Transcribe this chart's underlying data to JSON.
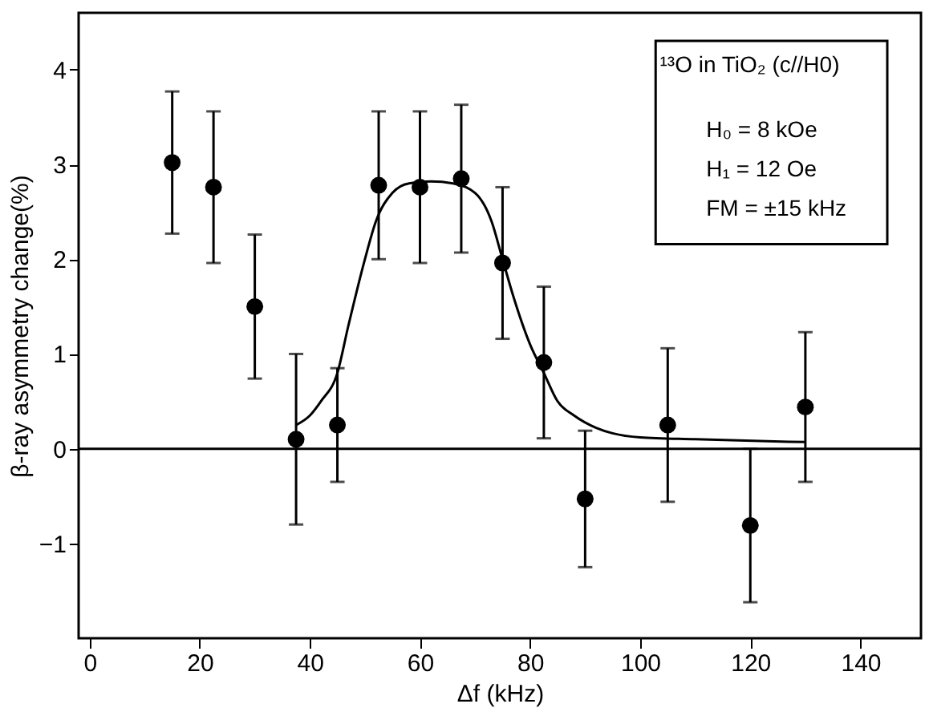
{
  "chart_data": {
    "type": "scatter",
    "xlabel": "Δf (kHz)",
    "ylabel": "β-ray asymmetry change(%)",
    "xlim": [
      -2,
      151
    ],
    "ylim": [
      -2,
      4.6
    ],
    "xticks": [
      0,
      20,
      40,
      60,
      80,
      100,
      120,
      140
    ],
    "yticks": [
      -1,
      0,
      1,
      2,
      3,
      4
    ],
    "grid": false,
    "series": [
      {
        "color": "#000000",
        "marker": "circle",
        "x": [
          15,
          22.5,
          30,
          37.5,
          45,
          52.5,
          60,
          67.5,
          75,
          82.5,
          90,
          105,
          120,
          130
        ],
        "values": [
          3.02,
          2.76,
          1.5,
          0.1,
          0.25,
          2.78,
          2.76,
          2.85,
          1.96,
          0.91,
          -0.53,
          0.25,
          -0.81,
          0.44
        ],
        "errors": [
          0.75,
          0.8,
          0.76,
          0.9,
          0.6,
          0.78,
          0.8,
          0.78,
          0.8,
          0.8,
          0.72,
          0.81,
          0.81,
          0.79
        ]
      },
      {
        "type": "line",
        "color": "#000000",
        "marker": "none",
        "line_style": "solid",
        "x": [
          37.5,
          40,
          42,
          45,
          47,
          50,
          52,
          55,
          58,
          62,
          66,
          70,
          73,
          75,
          77,
          80,
          82.5,
          85,
          88,
          92,
          100,
          110,
          130
        ],
        "values": [
          0.25,
          0.35,
          0.5,
          0.8,
          1.3,
          2.0,
          2.4,
          2.7,
          2.8,
          2.82,
          2.8,
          2.7,
          2.4,
          2.0,
          1.6,
          1.1,
          0.8,
          0.5,
          0.35,
          0.22,
          0.12,
          0.1,
          0.07
        ]
      }
    ],
    "ref_lines": [
      {
        "axis": "y",
        "value": 0,
        "color": "#000000"
      }
    ],
    "annotations": [
      "¹³O in TiO₂  (c//H0)",
      "H₀ = 8 kOe",
      "H₁ = 12 Oe",
      "FM = ±15 kHz"
    ]
  }
}
